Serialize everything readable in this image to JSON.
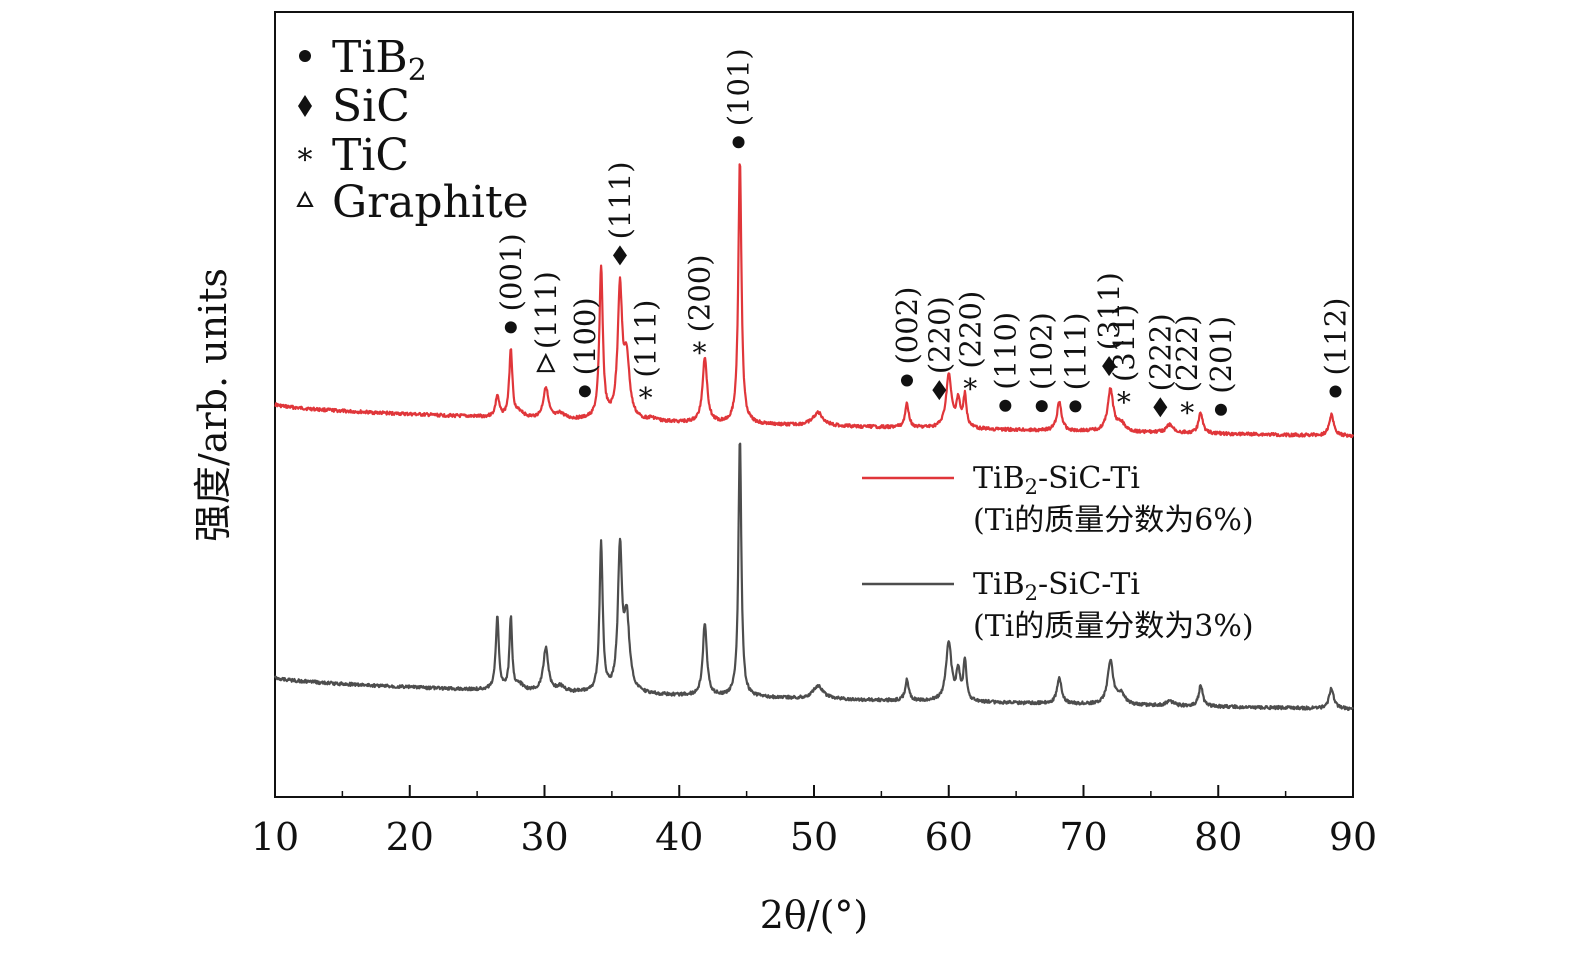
{
  "chart_data": {
    "type": "line",
    "xlabel": "2θ/(°)",
    "ylabel": "强度/arb. units",
    "xlim": [
      10,
      90
    ],
    "xticks": [
      "10",
      "20",
      "30",
      "40",
      "50",
      "60",
      "70",
      "80",
      "90"
    ],
    "yticks_shown": false,
    "grid": false,
    "phase_legend": {
      "placement": "top-left",
      "entries": [
        {
          "symbol": "filled-circle",
          "label": "TiB",
          "sub": "2"
        },
        {
          "symbol": "filled-diamond",
          "label": "SiC",
          "sub": ""
        },
        {
          "symbol": "asterisk",
          "label": "TiC",
          "sub": ""
        },
        {
          "symbol": "open-triangle",
          "label": "Graphite",
          "sub": ""
        }
      ]
    },
    "series": [
      {
        "name": "TiB2-SiC-Ti (Ti的质量分数为6%)",
        "legend_line1_main": "TiB",
        "legend_line1_sub": "2",
        "legend_line1_rest": "-SiC-Ti",
        "legend_line2": "(Ti的质量分数为6%)",
        "color": "#e0363a",
        "baseline_start": 10,
        "baseline_end": 6,
        "peaks": [
          {
            "x": 26.5,
            "h": 8,
            "w": 0.16
          },
          {
            "x": 27.5,
            "h": 26,
            "w": 0.14
          },
          {
            "x": 28.2,
            "h": 2,
            "w": 0.3
          },
          {
            "x": 30.1,
            "h": 12,
            "w": 0.22
          },
          {
            "x": 31.2,
            "h": 2,
            "w": 0.3
          },
          {
            "x": 34.2,
            "h": 58,
            "w": 0.15
          },
          {
            "x": 35.6,
            "h": 49,
            "w": 0.2
          },
          {
            "x": 36.1,
            "h": 22,
            "w": 0.25
          },
          {
            "x": 38.0,
            "h": 1,
            "w": 0.4
          },
          {
            "x": 41.9,
            "h": 25,
            "w": 0.2
          },
          {
            "x": 44.5,
            "h": 100,
            "w": 0.14
          },
          {
            "x": 50.3,
            "h": 5,
            "w": 0.45
          },
          {
            "x": 56.9,
            "h": 9,
            "w": 0.17
          },
          {
            "x": 60.0,
            "h": 20,
            "w": 0.24
          },
          {
            "x": 60.7,
            "h": 10,
            "w": 0.18
          },
          {
            "x": 61.2,
            "h": 12,
            "w": 0.14
          },
          {
            "x": 68.2,
            "h": 11,
            "w": 0.2
          },
          {
            "x": 72.0,
            "h": 16,
            "w": 0.25
          },
          {
            "x": 72.8,
            "h": 3,
            "w": 0.3
          },
          {
            "x": 76.4,
            "h": 3,
            "w": 0.3
          },
          {
            "x": 78.7,
            "h": 8,
            "w": 0.18
          },
          {
            "x": 88.4,
            "h": 8,
            "w": 0.2
          }
        ]
      },
      {
        "name": "TiB2-SiC-Ti (Ti的质量分数为3%)",
        "legend_line1_main": "TiB",
        "legend_line1_sub": "2",
        "legend_line1_rest": "-SiC-Ti",
        "legend_line2": "(Ti的质量分数为3%)",
        "color": "#4d4d4d",
        "baseline_start": 10,
        "baseline_end": 3,
        "peaks": [
          {
            "x": 26.5,
            "h": 28,
            "w": 0.14
          },
          {
            "x": 27.5,
            "h": 28,
            "w": 0.12
          },
          {
            "x": 28.2,
            "h": 2,
            "w": 0.3
          },
          {
            "x": 30.1,
            "h": 17,
            "w": 0.22
          },
          {
            "x": 31.2,
            "h": 2,
            "w": 0.3
          },
          {
            "x": 34.2,
            "h": 58,
            "w": 0.14
          },
          {
            "x": 35.6,
            "h": 54,
            "w": 0.18
          },
          {
            "x": 36.1,
            "h": 28,
            "w": 0.25
          },
          {
            "x": 41.9,
            "h": 28,
            "w": 0.18
          },
          {
            "x": 44.5,
            "h": 100,
            "w": 0.13
          },
          {
            "x": 50.3,
            "h": 5,
            "w": 0.45
          },
          {
            "x": 56.9,
            "h": 8,
            "w": 0.16
          },
          {
            "x": 60.0,
            "h": 23,
            "w": 0.24
          },
          {
            "x": 60.7,
            "h": 11,
            "w": 0.16
          },
          {
            "x": 61.2,
            "h": 15,
            "w": 0.14
          },
          {
            "x": 68.2,
            "h": 10,
            "w": 0.2
          },
          {
            "x": 72.0,
            "h": 17,
            "w": 0.25
          },
          {
            "x": 72.8,
            "h": 4,
            "w": 0.3
          },
          {
            "x": 76.4,
            "h": 2,
            "w": 0.3
          },
          {
            "x": 78.7,
            "h": 8,
            "w": 0.18
          },
          {
            "x": 88.4,
            "h": 8,
            "w": 0.2
          }
        ]
      }
    ],
    "annotations": [
      {
        "symbol": "filled-circle",
        "x": 27.5,
        "label": "(001)"
      },
      {
        "symbol": "open-triangle",
        "x": 30.1,
        "label": "(111)"
      },
      {
        "symbol": "filled-circle",
        "x": 33.0,
        "label": "(100)"
      },
      {
        "symbol": "filled-diamond",
        "x": 35.6,
        "label": "(111)"
      },
      {
        "symbol": "asterisk",
        "x": 37.5,
        "label": "(111)"
      },
      {
        "symbol": "asterisk",
        "x": 41.5,
        "label": "(200)"
      },
      {
        "symbol": "filled-circle",
        "x": 44.4,
        "label": "(101)"
      },
      {
        "symbol": "filled-circle",
        "x": 56.9,
        "label": "(002)"
      },
      {
        "symbol": "filled-diamond",
        "x": 59.3,
        "label": "(220)"
      },
      {
        "symbol": "asterisk",
        "x": 61.6,
        "label": "(220)"
      },
      {
        "symbol": "filled-circle",
        "x": 64.2,
        "label": "(110)"
      },
      {
        "symbol": "filled-circle",
        "x": 66.9,
        "label": "(102)"
      },
      {
        "symbol": "filled-circle",
        "x": 69.4,
        "label": "(111)"
      },
      {
        "symbol": "filled-diamond",
        "x": 71.9,
        "label": "(311)"
      },
      {
        "symbol": "asterisk",
        "x": 73.0,
        "label": "(311)"
      },
      {
        "symbol": "filled-diamond",
        "x": 75.7,
        "label": "(222)"
      },
      {
        "symbol": "asterisk",
        "x": 77.7,
        "label": "(222)"
      },
      {
        "symbol": "filled-circle",
        "x": 80.2,
        "label": "(201)"
      },
      {
        "symbol": "filled-circle",
        "x": 88.7,
        "label": "(112)"
      }
    ]
  }
}
